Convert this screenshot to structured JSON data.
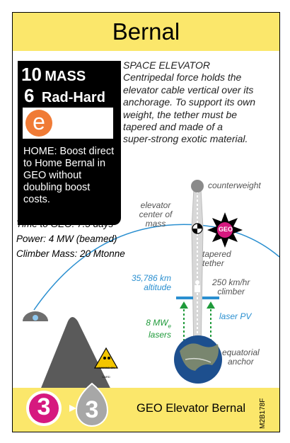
{
  "title": "Bernal",
  "stats": {
    "mass_value": "10",
    "mass_label": "MASS",
    "radhard_value": "6",
    "radhard_label": "Rad-Hard",
    "electric_glyph": "e",
    "home_text": "HOME: Boost direct to Home Bernal in GEO without doubling boost costs."
  },
  "description": {
    "heading": "SPACE ELEVATOR",
    "lines": [
      "Centripedal force holds the",
      "elevator cable vertical over its",
      "anchorage. To support its own",
      "weight, the tether must be",
      "tapered and made of a",
      "super-strong exotic material."
    ]
  },
  "performance": {
    "time_to_geo": "Time to GEO: 7.5 days",
    "power": "Power: 4 MW (beamed)",
    "climber_mass": "Climber Mass: 20 Mtonne"
  },
  "diagram": {
    "counterweight": "counterweight",
    "center_of_mass": [
      "elevator",
      "center of",
      "mass"
    ],
    "geo_label": "GEO",
    "tapered_tether": [
      "tapered",
      "tether"
    ],
    "altitude": [
      "35,786 km",
      "altitude"
    ],
    "climber": [
      "250 km/hr",
      "climber"
    ],
    "lasers": [
      "8 MW",
      "e",
      "lasers"
    ],
    "laser_pv": "laser PV",
    "anchor": [
      "equatorial",
      "anchor"
    ],
    "hazard_text": "HUMANS ON CARD"
  },
  "colors": {
    "title_bar": "#fbe76b",
    "orbit_blue": "#2a8fd0",
    "laser_green": "#1f9a3a",
    "geo_magenta": "#d6197f",
    "electric_orange": "#f07b36"
  },
  "footer": {
    "left_badge": "3",
    "right_badge": "3",
    "name": "GEO Elevator Bernal",
    "code": "M2B178F"
  }
}
